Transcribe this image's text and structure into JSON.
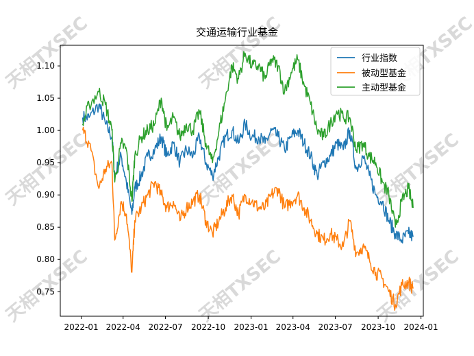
{
  "watermark": "天相TXSEC",
  "chart_data": {
    "type": "line",
    "title": "交通运输行业基金",
    "xlabel": "",
    "ylabel": "",
    "x_ticks": [
      "2022-01",
      "2022-04",
      "2022-07",
      "2022-10",
      "2023-01",
      "2023-04",
      "2023-07",
      "2023-10",
      "2024-01"
    ],
    "y_ticks": [
      0.75,
      0.8,
      0.85,
      0.9,
      0.95,
      1.0,
      1.05,
      1.1
    ],
    "xlim": [
      "2021-11-17",
      "2024-01-06"
    ],
    "ylim": [
      0.712,
      1.132
    ],
    "legend_position": "top-right",
    "grid": false,
    "series": [
      {
        "name": "行业指数",
        "color": "#1f77b4",
        "dates": [
          "2022-01-04",
          "2022-01-18",
          "2022-02-08",
          "2022-02-22",
          "2022-03-08",
          "2022-03-14",
          "2022-03-28",
          "2022-04-08",
          "2022-04-20",
          "2022-04-26",
          "2022-05-10",
          "2022-05-24",
          "2022-06-08",
          "2022-06-22",
          "2022-07-04",
          "2022-07-18",
          "2022-08-01",
          "2022-08-15",
          "2022-08-29",
          "2022-09-12",
          "2022-09-26",
          "2022-10-10",
          "2022-10-24",
          "2022-11-07",
          "2022-11-21",
          "2022-12-05",
          "2022-12-19",
          "2023-01-03",
          "2023-01-17",
          "2023-01-31",
          "2023-02-14",
          "2023-02-28",
          "2023-03-14",
          "2023-03-28",
          "2023-04-11",
          "2023-04-25",
          "2023-05-09",
          "2023-05-23",
          "2023-06-06",
          "2023-06-20",
          "2023-07-04",
          "2023-07-18",
          "2023-08-01",
          "2023-08-15",
          "2023-08-29",
          "2023-09-12",
          "2023-09-26",
          "2023-10-10",
          "2023-10-24",
          "2023-11-07",
          "2023-11-21",
          "2023-12-05",
          "2023-12-15"
        ],
        "values": [
          1.02,
          1.02,
          1.04,
          1.01,
          0.99,
          0.93,
          0.96,
          0.92,
          0.87,
          0.91,
          0.93,
          0.96,
          0.97,
          0.99,
          0.96,
          0.98,
          0.95,
          0.97,
          0.96,
          0.99,
          0.95,
          0.93,
          0.96,
          0.99,
          1.0,
          0.98,
          1.01,
          0.99,
          0.99,
          0.98,
          1.0,
          0.99,
          0.97,
          0.99,
          1.0,
          0.98,
          0.96,
          0.93,
          0.95,
          0.96,
          0.98,
          0.97,
          1.0,
          0.94,
          0.96,
          0.93,
          0.9,
          0.89,
          0.86,
          0.84,
          0.83,
          0.84,
          0.835
        ]
      },
      {
        "name": "被动型基金",
        "color": "#ff7f0e",
        "dates": [
          "2022-01-04",
          "2022-01-18",
          "2022-02-08",
          "2022-02-22",
          "2022-03-08",
          "2022-03-14",
          "2022-03-28",
          "2022-04-08",
          "2022-04-20",
          "2022-04-26",
          "2022-05-10",
          "2022-05-24",
          "2022-06-08",
          "2022-06-22",
          "2022-07-04",
          "2022-07-18",
          "2022-08-01",
          "2022-08-15",
          "2022-08-29",
          "2022-09-12",
          "2022-09-26",
          "2022-10-10",
          "2022-10-24",
          "2022-11-07",
          "2022-11-21",
          "2022-12-05",
          "2022-12-19",
          "2023-01-03",
          "2023-01-17",
          "2023-01-31",
          "2023-02-14",
          "2023-02-28",
          "2023-03-14",
          "2023-03-28",
          "2023-04-11",
          "2023-04-25",
          "2023-05-09",
          "2023-05-23",
          "2023-06-06",
          "2023-06-20",
          "2023-07-04",
          "2023-07-18",
          "2023-08-01",
          "2023-08-15",
          "2023-08-29",
          "2023-09-12",
          "2023-09-26",
          "2023-10-10",
          "2023-10-24",
          "2023-11-07",
          "2023-11-21",
          "2023-12-05",
          "2023-12-15"
        ],
        "values": [
          1.0,
          0.98,
          0.91,
          0.94,
          0.95,
          0.83,
          0.89,
          0.87,
          0.78,
          0.86,
          0.88,
          0.9,
          0.92,
          0.9,
          0.88,
          0.89,
          0.86,
          0.88,
          0.89,
          0.9,
          0.86,
          0.84,
          0.86,
          0.88,
          0.9,
          0.87,
          0.9,
          0.89,
          0.88,
          0.88,
          0.9,
          0.91,
          0.88,
          0.89,
          0.9,
          0.88,
          0.86,
          0.84,
          0.83,
          0.84,
          0.83,
          0.82,
          0.86,
          0.81,
          0.82,
          0.8,
          0.78,
          0.77,
          0.75,
          0.73,
          0.76,
          0.765,
          0.755
        ]
      },
      {
        "name": "主动型基金",
        "color": "#2ca02c",
        "dates": [
          "2022-01-04",
          "2022-01-18",
          "2022-02-08",
          "2022-02-22",
          "2022-03-08",
          "2022-03-14",
          "2022-03-28",
          "2022-04-08",
          "2022-04-20",
          "2022-04-26",
          "2022-05-10",
          "2022-05-24",
          "2022-06-08",
          "2022-06-22",
          "2022-07-04",
          "2022-07-18",
          "2022-08-01",
          "2022-08-15",
          "2022-08-29",
          "2022-09-12",
          "2022-09-26",
          "2022-10-10",
          "2022-10-24",
          "2022-11-07",
          "2022-11-21",
          "2022-12-05",
          "2022-12-19",
          "2023-01-03",
          "2023-01-17",
          "2023-01-31",
          "2023-02-14",
          "2023-02-28",
          "2023-03-14",
          "2023-03-28",
          "2023-04-11",
          "2023-04-25",
          "2023-05-09",
          "2023-05-23",
          "2023-06-06",
          "2023-06-20",
          "2023-07-04",
          "2023-07-18",
          "2023-08-01",
          "2023-08-15",
          "2023-08-29",
          "2023-09-12",
          "2023-09-26",
          "2023-10-10",
          "2023-10-24",
          "2023-11-07",
          "2023-11-21",
          "2023-12-05",
          "2023-12-15"
        ],
        "values": [
          1.01,
          1.04,
          1.06,
          1.04,
          1.0,
          0.92,
          0.98,
          0.97,
          0.89,
          0.96,
          0.99,
          1.0,
          1.01,
          1.05,
          1.0,
          1.02,
          0.99,
          1.01,
          1.0,
          1.03,
          0.98,
          0.95,
          1.0,
          1.05,
          1.1,
          1.08,
          1.12,
          1.1,
          1.1,
          1.08,
          1.11,
          1.1,
          1.06,
          1.09,
          1.11,
          1.07,
          1.04,
          1.0,
          0.99,
          1.01,
          1.03,
          1.02,
          1.02,
          0.97,
          0.98,
          0.96,
          0.95,
          0.92,
          0.9,
          0.85,
          0.89,
          0.91,
          0.88
        ]
      }
    ]
  }
}
